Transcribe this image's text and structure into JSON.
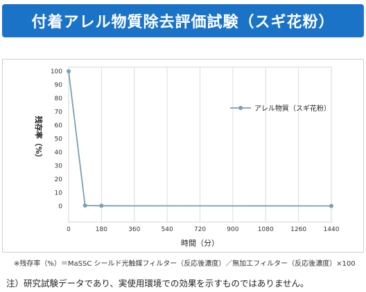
{
  "title": "付着アレル物質除去評価試験（スギ花粉）",
  "chart_data": {
    "type": "line",
    "xlabel": "時間（分）",
    "ylabel": "残存率（%）",
    "x_ticks": [
      0,
      180,
      360,
      540,
      720,
      900,
      1080,
      1260,
      1440
    ],
    "y_ticks": [
      0,
      10,
      20,
      30,
      40,
      50,
      60,
      70,
      80,
      90,
      100
    ],
    "xlim": [
      0,
      1440
    ],
    "ylim": [
      0,
      100
    ],
    "grid": "vertical",
    "legend_position": "top-right",
    "series": [
      {
        "name": "アレル物質（スギ花粉）",
        "color": "#7a9fb0",
        "x": [
          0,
          90,
          180,
          1440
        ],
        "y": [
          100,
          0.5,
          0.3,
          0.2
        ]
      }
    ]
  },
  "footnote": "※残存率（%）＝MaSSC シールド光触媒フィルター（反応後濃度）／無加工フィルター（反応後濃度）×100",
  "note": "注）研究試験データであり、実使用環境での効果を示すものではありません。"
}
